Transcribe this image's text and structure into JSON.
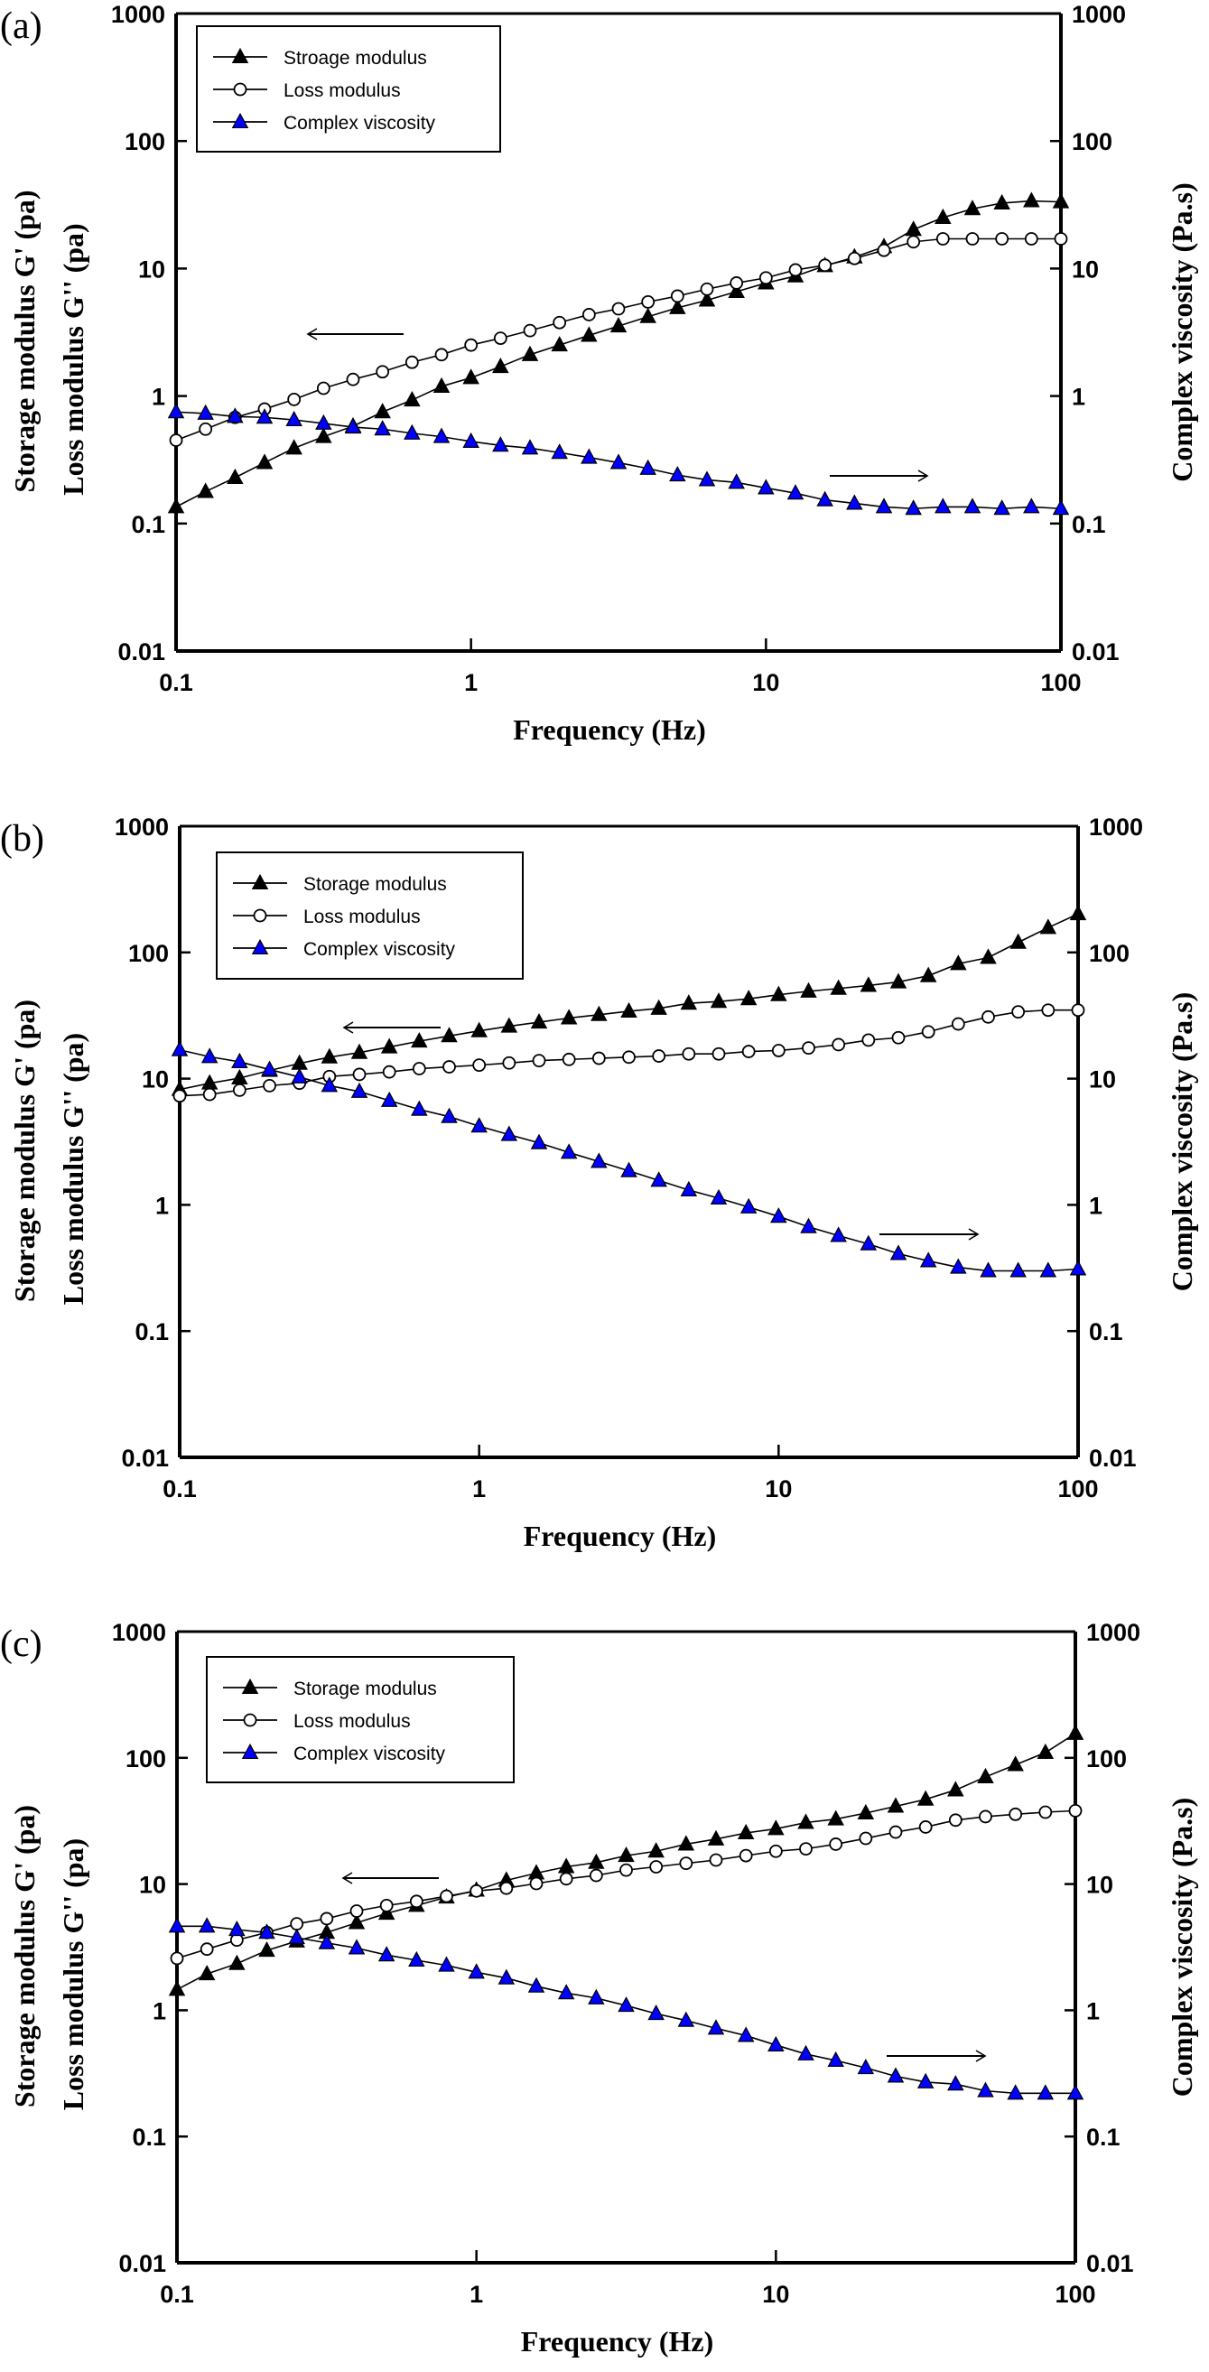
{
  "chart_data": [
    {
      "type": "line",
      "panel_label": "(a)",
      "xlabel": "Frequency  (Hz)",
      "ylabel_left": [
        "Storage modulus G' (pa)",
        "Loss modulus G'' (pa)"
      ],
      "ylabel_right": "Complex viscosity (Pa.s)",
      "xscale": "log",
      "yscale": "log",
      "xlim": [
        0.1,
        100
      ],
      "ylim": [
        0.01,
        1000
      ],
      "ylim_right": [
        0.01,
        1000
      ],
      "xticks": [
        "0.1",
        "1",
        "10",
        "100"
      ],
      "yticks": [
        "0.01",
        "0.1",
        "1",
        "10",
        "100",
        "1000"
      ],
      "legend_position": "top-left",
      "legend": [
        "Stroage modulus",
        "Loss modulus",
        "Complex viscosity"
      ],
      "arrows": [
        {
          "direction": "left",
          "points_to": "left-axis"
        },
        {
          "direction": "right",
          "points_to": "right-axis"
        }
      ],
      "points_per_decade": 10,
      "series": [
        {
          "name": "Stroage modulus",
          "marker": "filled-triangle",
          "color": "#000000",
          "axis": "left",
          "values": [
            0.135,
            0.178,
            0.229,
            0.3,
            0.39,
            0.48,
            0.58,
            0.75,
            0.93,
            1.19,
            1.39,
            1.7,
            2.11,
            2.51,
            2.99,
            3.54,
            4.19,
            4.92,
            5.64,
            6.59,
            7.7,
            8.72,
            10.5,
            12.3,
            14.8,
            20.2,
            25.1,
            29.4,
            32.6,
            33.9,
            33.3
          ]
        },
        {
          "name": "Loss modulus",
          "marker": "open-circle",
          "color": "#000000",
          "axis": "left",
          "values": [
            0.45,
            0.55,
            0.68,
            0.79,
            0.94,
            1.15,
            1.35,
            1.55,
            1.84,
            2.11,
            2.51,
            2.84,
            3.26,
            3.77,
            4.35,
            4.83,
            5.47,
            6.08,
            6.89,
            7.7,
            8.45,
            9.75,
            10.6,
            12.0,
            13.9,
            16.2,
            17.1,
            17.1,
            17.1,
            17.1,
            17.1
          ]
        },
        {
          "name": "Complex viscosity",
          "marker": "filled-triangle",
          "color": "#0000ff",
          "axis": "right",
          "values": [
            0.75,
            0.73,
            0.69,
            0.68,
            0.65,
            0.61,
            0.57,
            0.55,
            0.51,
            0.48,
            0.44,
            0.41,
            0.39,
            0.36,
            0.33,
            0.3,
            0.27,
            0.24,
            0.22,
            0.21,
            0.19,
            0.173,
            0.153,
            0.144,
            0.135,
            0.131,
            0.135,
            0.135,
            0.131,
            0.135,
            0.131
          ]
        }
      ]
    },
    {
      "type": "line",
      "panel_label": "(b)",
      "xlabel": "Frequency  (Hz)",
      "ylabel_left": [
        "Storage modulus G' (pa)",
        "Loss modulus G'' (pa)"
      ],
      "ylabel_right": "Complex viscosity (Pa.s)",
      "xscale": "log",
      "yscale": "log",
      "xlim": [
        0.1,
        100
      ],
      "ylim": [
        0.01,
        1000
      ],
      "ylim_right": [
        0.01,
        1000
      ],
      "xticks": [
        "0.1",
        "1",
        "10",
        "100"
      ],
      "yticks": [
        "0.01",
        "0.1",
        "1",
        "10",
        "100",
        "1000"
      ],
      "legend_position": "top-left",
      "legend": [
        "Storage modulus",
        "Loss modulus",
        "Complex viscosity"
      ],
      "arrows": [
        {
          "direction": "left",
          "points_to": "left-axis"
        },
        {
          "direction": "right",
          "points_to": "right-axis"
        }
      ],
      "points_per_decade": 10,
      "series": [
        {
          "name": "Storage modulus",
          "marker": "filled-triangle",
          "color": "#000000",
          "axis": "left",
          "values": [
            8.2,
            9.2,
            10.1,
            11.6,
            13.2,
            14.8,
            16.1,
            17.8,
            19.8,
            21.8,
            23.9,
            26.0,
            28.0,
            30.2,
            32.1,
            34.2,
            36.0,
            39.5,
            40.8,
            42.9,
            46.2,
            49.2,
            51.8,
            54.7,
            58.3,
            65.3,
            81.3,
            91.0,
            120,
            157,
            202
          ]
        },
        {
          "name": "Loss modulus",
          "marker": "open-circle",
          "color": "#000000",
          "axis": "left",
          "values": [
            7.3,
            7.5,
            8.1,
            8.8,
            9.2,
            10.4,
            10.8,
            11.3,
            12.0,
            12.4,
            12.8,
            13.3,
            13.9,
            14.2,
            14.5,
            14.8,
            15.1,
            15.7,
            15.7,
            16.4,
            16.7,
            17.5,
            18.6,
            20.2,
            21.1,
            23.5,
            27.1,
            30.8,
            33.8,
            34.9,
            34.9
          ]
        },
        {
          "name": "Complex viscosity",
          "marker": "filled-triangle",
          "color": "#0000ff",
          "axis": "right",
          "values": [
            16.9,
            14.9,
            13.6,
            11.8,
            10.3,
            8.8,
            7.9,
            6.7,
            5.7,
            5.0,
            4.2,
            3.6,
            3.1,
            2.6,
            2.2,
            1.86,
            1.56,
            1.31,
            1.13,
            0.96,
            0.81,
            0.67,
            0.57,
            0.49,
            0.41,
            0.36,
            0.32,
            0.3,
            0.3,
            0.3,
            0.31
          ]
        }
      ]
    },
    {
      "type": "line",
      "panel_label": "(c)",
      "xlabel": "Frequency  (Hz)",
      "ylabel_left": [
        "Storage modulus G' (pa)",
        "Loss modulus G'' (pa)"
      ],
      "ylabel_right": "Complex viscosity (Pa.s)",
      "xscale": "log",
      "yscale": "log",
      "xlim": [
        0.1,
        100
      ],
      "ylim": [
        0.01,
        1000
      ],
      "ylim_right": [
        0.01,
        1000
      ],
      "xticks": [
        "0.1",
        "1",
        "10",
        "100"
      ],
      "yticks": [
        "0.01",
        "0.1",
        "1",
        "10",
        "100",
        "1000"
      ],
      "legend_position": "top-left",
      "legend": [
        "Storage modulus",
        "Loss modulus",
        "Complex viscosity"
      ],
      "arrows": [
        {
          "direction": "left",
          "points_to": "left-axis"
        },
        {
          "direction": "right",
          "points_to": "right-axis"
        }
      ],
      "points_per_decade": 10,
      "series": [
        {
          "name": "Storage modulus",
          "marker": "filled-triangle",
          "color": "#000000",
          "axis": "left",
          "values": [
            1.46,
            1.94,
            2.34,
            2.98,
            3.53,
            4.13,
            4.93,
            5.85,
            6.76,
            7.87,
            8.93,
            10.7,
            12.2,
            13.7,
            14.8,
            16.8,
            18.2,
            20.7,
            22.7,
            25.4,
            27.4,
            30.7,
            32.7,
            36.5,
            41.3,
            46.9,
            55.6,
            70.6,
            88.1,
            110,
            156
          ]
        },
        {
          "name": "Loss modulus",
          "marker": "open-circle",
          "color": "#000000",
          "axis": "left",
          "values": [
            2.58,
            3.05,
            3.6,
            4.13,
            4.84,
            5.32,
            6.11,
            6.76,
            7.29,
            8.01,
            8.81,
            9.27,
            10.1,
            11.0,
            11.7,
            12.9,
            13.7,
            14.6,
            15.5,
            16.8,
            18.2,
            19.0,
            20.7,
            23.0,
            25.8,
            28.3,
            32.1,
            34.2,
            35.7,
            37.1,
            38.1
          ]
        },
        {
          "name": "Complex viscosity",
          "marker": "filled-triangle",
          "color": "#0000ff",
          "axis": "right",
          "values": [
            4.63,
            4.63,
            4.35,
            4.13,
            3.76,
            3.42,
            3.11,
            2.74,
            2.49,
            2.27,
            2.0,
            1.8,
            1.55,
            1.37,
            1.25,
            1.09,
            0.94,
            0.83,
            0.72,
            0.63,
            0.53,
            0.45,
            0.4,
            0.35,
            0.3,
            0.27,
            0.26,
            0.23,
            0.22,
            0.22,
            0.22
          ]
        }
      ]
    }
  ]
}
